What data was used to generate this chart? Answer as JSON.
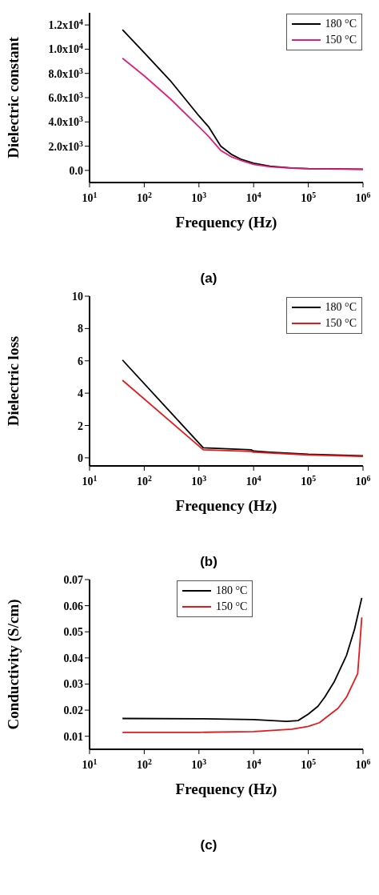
{
  "chart_data": [
    {
      "type": "line",
      "xlabel": "Frequency (Hz)",
      "ylabel": "Dielectric constant",
      "log": "x",
      "legend": "top right",
      "grid": false,
      "marker": "none",
      "annotations": [
        "(a)"
      ],
      "xlim": [
        10,
        1000000
      ],
      "xticks": [
        {
          "value": 10,
          "label": "10$^{1}$"
        },
        {
          "value": 100,
          "label": "10$^{2}$"
        },
        {
          "value": 1000,
          "label": "10$^{3}$"
        },
        {
          "value": 10000,
          "label": "10$^{4}$"
        },
        {
          "value": 100000,
          "label": "10$^{5}$"
        },
        {
          "value": 1000000,
          "label": "10$^{6}$"
        }
      ],
      "ylim": [
        -1000,
        13000
      ],
      "yticks": [
        {
          "value": 0,
          "label": "0.0"
        },
        {
          "value": 2000,
          "label": "2.0x10$^{3}$"
        },
        {
          "value": 4000,
          "label": "4.0x10$^{3}$"
        },
        {
          "value": 6000,
          "label": "6.0x10$^{3}$"
        },
        {
          "value": 8000,
          "label": "8.0x10$^{3}$"
        },
        {
          "value": 10000,
          "label": "1.0x10$^{4}$"
        },
        {
          "value": 12000,
          "label": "1.2x10$^{4}$"
        }
      ],
      "series": [
        {
          "name": "180 °C",
          "color": "#000000",
          "x": [
            40,
            100,
            300,
            1000,
            1500,
            2500,
            4000,
            6000,
            10000,
            20000,
            50000,
            100000,
            1000000
          ],
          "values": [
            11600,
            9700,
            7400,
            4500,
            3600,
            2000,
            1300,
            900,
            600,
            350,
            200,
            150,
            100
          ]
        },
        {
          "name": "150 °C",
          "color": "#e0207a",
          "x": [
            40,
            100,
            300,
            1000,
            1500,
            2500,
            4000,
            6000,
            10000,
            20000,
            50000,
            100000,
            1000000
          ],
          "values": [
            9250,
            7800,
            5900,
            3600,
            2800,
            1650,
            1100,
            800,
            500,
            300,
            180,
            130,
            80
          ]
        }
      ]
    },
    {
      "type": "line",
      "xlabel": "Frequency (Hz)",
      "ylabel": "Dielectric loss",
      "log": "x",
      "legend": "top right",
      "grid": false,
      "marker": "none",
      "annotations": [
        "(b)"
      ],
      "xlim": [
        10,
        1000000
      ],
      "xticks": [
        {
          "value": 10,
          "label": "10$^{1}$"
        },
        {
          "value": 100,
          "label": "10$^{2}$"
        },
        {
          "value": 1000,
          "label": "10$^{3}$"
        },
        {
          "value": 10000,
          "label": "10$^{4}$"
        },
        {
          "value": 100000,
          "label": "10$^{5}$"
        },
        {
          "value": 1000000,
          "label": "10$^{6}$"
        }
      ],
      "ylim": [
        -0.5,
        10
      ],
      "yticks": [
        0,
        2,
        4,
        6,
        8,
        10
      ],
      "series": [
        {
          "name": "180 °C",
          "color": "#000000",
          "x": [
            40,
            1200,
            9000,
            10000,
            20000,
            100000,
            1000000
          ],
          "values": [
            6.05,
            0.62,
            0.5,
            0.42,
            0.35,
            0.22,
            0.12
          ]
        },
        {
          "name": "150 °C",
          "color": "#e41a1c",
          "x": [
            40,
            1200,
            9000,
            10000,
            20000,
            100000,
            1000000
          ],
          "values": [
            4.8,
            0.5,
            0.4,
            0.35,
            0.3,
            0.18,
            0.09
          ]
        }
      ]
    },
    {
      "type": "line",
      "xlabel": "Frequency (Hz)",
      "ylabel": "Conductivity (S/cm)",
      "log": "x",
      "legend": "top",
      "grid": false,
      "marker": "none",
      "annotations": [
        "(c)"
      ],
      "xlim": [
        10,
        1000000
      ],
      "xticks": [
        {
          "value": 10,
          "label": "10$^{1}$"
        },
        {
          "value": 100,
          "label": "10$^{2}$"
        },
        {
          "value": 1000,
          "label": "10$^{3}$"
        },
        {
          "value": 10000,
          "label": "10$^{4}$"
        },
        {
          "value": 100000,
          "label": "10$^{5}$"
        },
        {
          "value": 1000000,
          "label": "10$^{6}$"
        }
      ],
      "ylim": [
        0.005,
        0.07
      ],
      "yticks": [
        0.01,
        0.02,
        0.03,
        0.04,
        0.05,
        0.06,
        0.07
      ],
      "series": [
        {
          "name": "180 °C",
          "color": "#000000",
          "x": [
            40,
            1000,
            10000,
            40000,
            65000,
            100000,
            150000,
            200000,
            300000,
            500000,
            700000,
            950000
          ],
          "values": [
            0.0168,
            0.0167,
            0.0164,
            0.0157,
            0.016,
            0.0185,
            0.0215,
            0.025,
            0.031,
            0.041,
            0.051,
            0.063
          ]
        },
        {
          "name": "150 °C",
          "color": "#e41a1c",
          "x": [
            40,
            1000,
            10000,
            50000,
            100000,
            160000,
            200000,
            350000,
            500000,
            800000,
            950000
          ],
          "values": [
            0.0115,
            0.0115,
            0.0118,
            0.0127,
            0.0138,
            0.0152,
            0.0168,
            0.0207,
            0.025,
            0.034,
            0.0555
          ]
        }
      ]
    }
  ]
}
